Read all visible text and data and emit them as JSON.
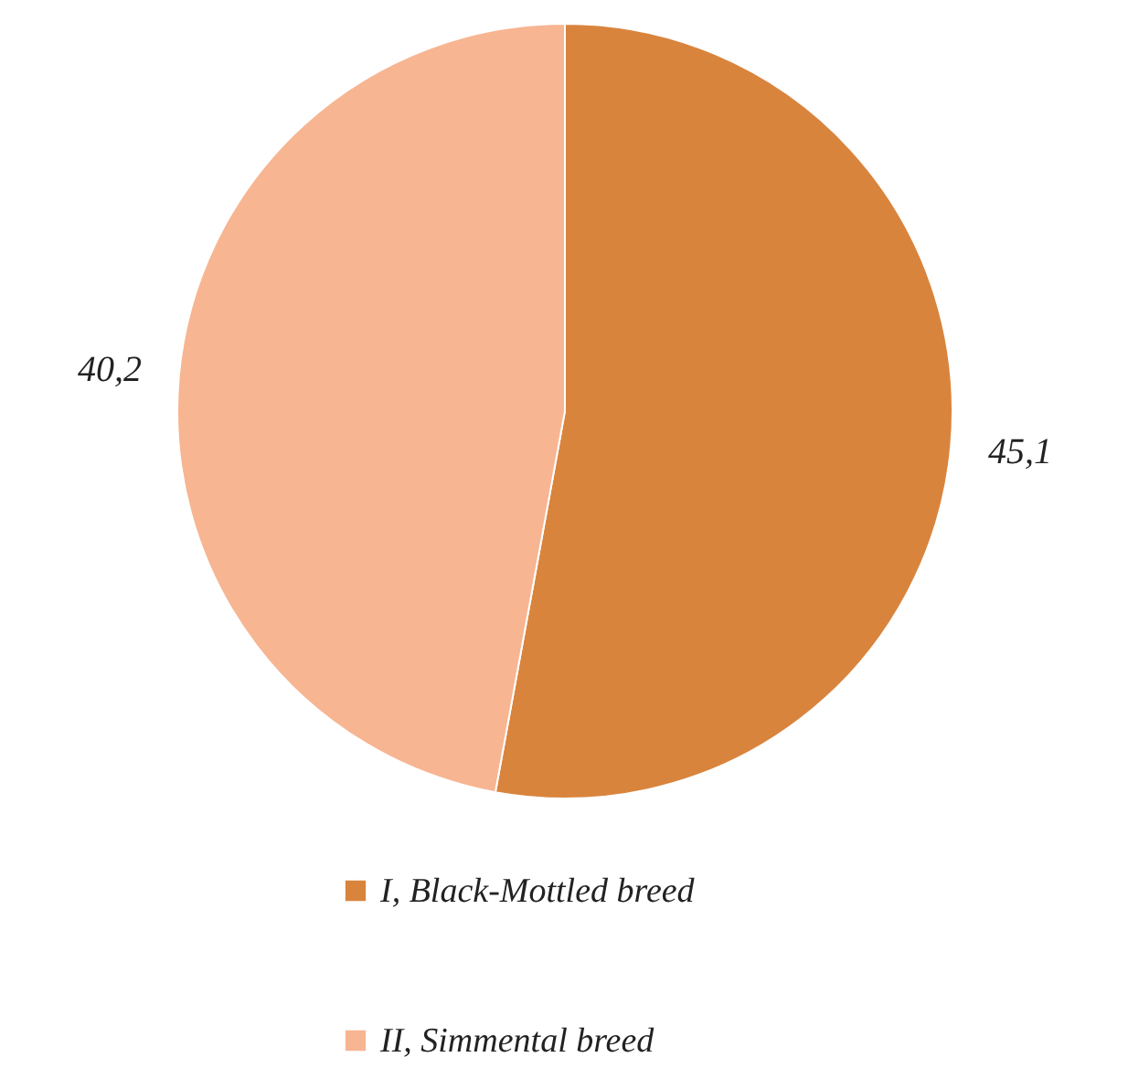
{
  "chart_data": {
    "type": "pie",
    "categories": [
      "I, Black-Mottled breed",
      "II, Simmental breed"
    ],
    "values": [
      45.1,
      40.2
    ],
    "colors": [
      "#d9843d",
      "#f7b592"
    ],
    "value_labels": [
      "45,1",
      "40,2"
    ],
    "legend": "bottom"
  }
}
